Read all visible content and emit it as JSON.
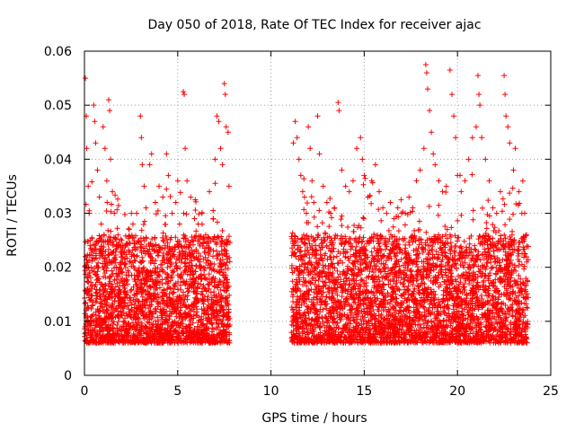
{
  "chart_data": {
    "type": "scatter",
    "title": "Day 050 of 2018, Rate Of TEC Index for receiver ajac",
    "xlabel": "GPS time / hours",
    "ylabel": "ROTI / TECUs",
    "xlim": [
      0,
      25
    ],
    "ylim": [
      0,
      0.06
    ],
    "x_ticks": [
      0,
      5,
      10,
      15,
      20,
      25
    ],
    "x_tick_labels": [
      "0",
      "5",
      "10",
      "15",
      "20",
      "25"
    ],
    "y_ticks": [
      0,
      0.01,
      0.02,
      0.03,
      0.04,
      0.05,
      0.06
    ],
    "y_tick_labels": [
      "0",
      "0.01",
      "0.02",
      "0.03",
      "0.04",
      "0.05",
      "0.06"
    ],
    "grid": true,
    "marker": "plus",
    "color": "#ff0000",
    "series": [
      {
        "name": "ROTI",
        "points": [
          [
            0.05,
            0.055
          ],
          [
            0.1,
            0.048
          ],
          [
            0.12,
            0.042
          ],
          [
            0.2,
            0.035
          ],
          [
            0.25,
            0.03
          ],
          [
            0.3,
            0.024
          ],
          [
            0.35,
            0.02
          ],
          [
            0.4,
            0.016
          ],
          [
            0.45,
            0.013
          ],
          [
            0.5,
            0.05
          ],
          [
            0.55,
            0.047
          ],
          [
            0.6,
            0.043
          ],
          [
            0.7,
            0.038
          ],
          [
            0.8,
            0.033
          ],
          [
            0.9,
            0.028
          ],
          [
            1.0,
            0.046
          ],
          [
            1.1,
            0.042
          ],
          [
            1.2,
            0.036
          ],
          [
            1.3,
            0.051
          ],
          [
            1.35,
            0.049
          ],
          [
            1.4,
            0.04
          ],
          [
            1.5,
            0.034
          ],
          [
            1.6,
            0.03
          ],
          [
            1.8,
            0.026
          ],
          [
            2.0,
            0.025
          ],
          [
            2.2,
            0.024
          ],
          [
            2.4,
            0.027
          ],
          [
            2.6,
            0.028
          ],
          [
            2.8,
            0.03
          ],
          [
            3.0,
            0.048
          ],
          [
            3.05,
            0.044
          ],
          [
            3.1,
            0.039
          ],
          [
            3.2,
            0.035
          ],
          [
            3.3,
            0.031
          ],
          [
            3.5,
            0.039
          ],
          [
            3.6,
            0.041
          ],
          [
            3.8,
            0.032
          ],
          [
            4.0,
            0.035
          ],
          [
            4.2,
            0.033
          ],
          [
            4.4,
            0.041
          ],
          [
            4.5,
            0.037
          ],
          [
            4.7,
            0.03
          ],
          [
            4.9,
            0.032
          ],
          [
            5.0,
            0.036
          ],
          [
            5.1,
            0.028
          ],
          [
            5.3,
            0.0525
          ],
          [
            5.35,
            0.052
          ],
          [
            5.4,
            0.042
          ],
          [
            5.5,
            0.036
          ],
          [
            5.7,
            0.033
          ],
          [
            5.9,
            0.029
          ],
          [
            6.1,
            0.028
          ],
          [
            6.3,
            0.03
          ],
          [
            6.5,
            0.026
          ],
          [
            6.7,
            0.034
          ],
          [
            6.9,
            0.029
          ],
          [
            7.0,
            0.04
          ],
          [
            7.1,
            0.048
          ],
          [
            7.2,
            0.047
          ],
          [
            7.3,
            0.042
          ],
          [
            7.4,
            0.039
          ],
          [
            7.5,
            0.054
          ],
          [
            7.55,
            0.052
          ],
          [
            7.6,
            0.046
          ],
          [
            7.7,
            0.045
          ],
          [
            7.75,
            0.035
          ],
          [
            11.2,
            0.043
          ],
          [
            11.3,
            0.047
          ],
          [
            11.4,
            0.044
          ],
          [
            11.5,
            0.04
          ],
          [
            11.6,
            0.037
          ],
          [
            11.7,
            0.034
          ],
          [
            11.8,
            0.033
          ],
          [
            11.9,
            0.03
          ],
          [
            12.0,
            0.046
          ],
          [
            12.1,
            0.042
          ],
          [
            12.2,
            0.036
          ],
          [
            12.3,
            0.032
          ],
          [
            12.5,
            0.048
          ],
          [
            12.6,
            0.041
          ],
          [
            12.8,
            0.035
          ],
          [
            13.0,
            0.032
          ],
          [
            13.2,
            0.03
          ],
          [
            13.4,
            0.031
          ],
          [
            13.6,
            0.0505
          ],
          [
            13.65,
            0.049
          ],
          [
            13.8,
            0.038
          ],
          [
            14.0,
            0.035
          ],
          [
            14.2,
            0.034
          ],
          [
            14.4,
            0.036
          ],
          [
            14.6,
            0.042
          ],
          [
            14.8,
            0.044
          ],
          [
            14.9,
            0.04
          ],
          [
            15.0,
            0.037
          ],
          [
            15.2,
            0.033
          ],
          [
            15.4,
            0.036
          ],
          [
            15.6,
            0.039
          ],
          [
            15.8,
            0.034
          ],
          [
            16.0,
            0.031
          ],
          [
            16.2,
            0.03
          ],
          [
            16.4,
            0.032
          ],
          [
            16.6,
            0.029
          ],
          [
            16.8,
            0.031
          ],
          [
            17.0,
            0.03
          ],
          [
            17.2,
            0.03
          ],
          [
            17.4,
            0.033
          ],
          [
            17.6,
            0.031
          ],
          [
            17.8,
            0.036
          ],
          [
            18.0,
            0.038
          ],
          [
            18.2,
            0.042
          ],
          [
            18.3,
            0.0575
          ],
          [
            18.35,
            0.056
          ],
          [
            18.4,
            0.053
          ],
          [
            18.5,
            0.049
          ],
          [
            18.6,
            0.045
          ],
          [
            18.7,
            0.041
          ],
          [
            18.8,
            0.039
          ],
          [
            19.0,
            0.036
          ],
          [
            19.2,
            0.034
          ],
          [
            19.4,
            0.035
          ],
          [
            19.6,
            0.0565
          ],
          [
            19.7,
            0.052
          ],
          [
            19.8,
            0.048
          ],
          [
            19.9,
            0.044
          ],
          [
            20.0,
            0.037
          ],
          [
            20.2,
            0.034
          ],
          [
            20.4,
            0.036
          ],
          [
            20.6,
            0.04
          ],
          [
            20.8,
            0.044
          ],
          [
            21.0,
            0.046
          ],
          [
            21.1,
            0.0555
          ],
          [
            21.15,
            0.052
          ],
          [
            21.2,
            0.05
          ],
          [
            21.3,
            0.044
          ],
          [
            21.5,
            0.04
          ],
          [
            21.7,
            0.036
          ],
          [
            21.9,
            0.031
          ],
          [
            22.1,
            0.03
          ],
          [
            22.3,
            0.034
          ],
          [
            22.5,
            0.0555
          ],
          [
            22.55,
            0.052
          ],
          [
            22.6,
            0.048
          ],
          [
            22.7,
            0.046
          ],
          [
            22.8,
            0.043
          ],
          [
            23.0,
            0.038
          ],
          [
            23.1,
            0.042
          ],
          [
            23.3,
            0.034
          ],
          [
            23.5,
            0.036
          ],
          [
            23.6,
            0.03
          ],
          [
            23.7,
            0.026
          ]
        ]
      }
    ]
  }
}
